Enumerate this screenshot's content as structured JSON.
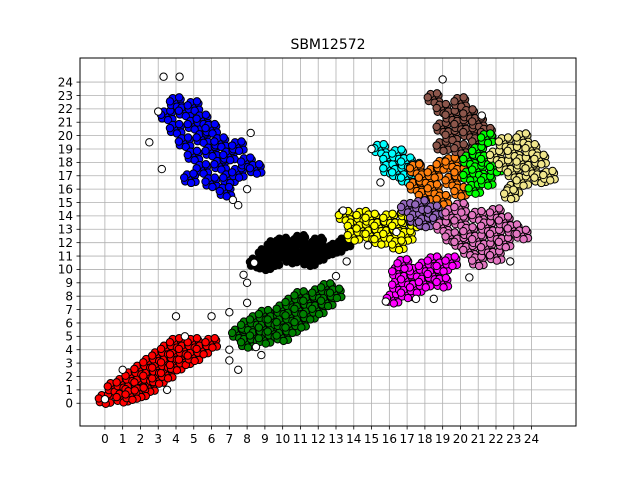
{
  "chart_data": {
    "type": "scatter",
    "title": "SBM12572",
    "xlabel": "",
    "ylabel": "",
    "xlim": [
      -1.4,
      26.5
    ],
    "ylim": [
      -1.7,
      25.8
    ],
    "x_ticks": [
      "0",
      "1",
      "2",
      "3",
      "4",
      "5",
      "6",
      "7",
      "8",
      "9",
      "10",
      "11",
      "12",
      "13",
      "14",
      "15",
      "16",
      "17",
      "18",
      "19",
      "20",
      "21",
      "22",
      "23",
      "24"
    ],
    "y_ticks": [
      "0",
      "1",
      "2",
      "3",
      "4",
      "5",
      "6",
      "7",
      "8",
      "9",
      "10",
      "11",
      "12",
      "13",
      "14",
      "15",
      "16",
      "17",
      "18",
      "19",
      "20",
      "21",
      "22",
      "23",
      "24"
    ],
    "grid": true,
    "legend": "none",
    "marker_edge_color": "#000000",
    "clusters": [
      {
        "color": "#ff0000",
        "points": [
          [
            0,
            0.3
          ],
          [
            0.5,
            1.2
          ],
          [
            1,
            1.5
          ],
          [
            1,
            0.4
          ],
          [
            1.5,
            1.0
          ],
          [
            1.5,
            2.0
          ],
          [
            2,
            1.5
          ],
          [
            2,
            2.5
          ],
          [
            2.5,
            1.2
          ],
          [
            2.5,
            2.0
          ],
          [
            2.5,
            3.0
          ],
          [
            3,
            1.8
          ],
          [
            3,
            2.6
          ],
          [
            3,
            3.5
          ],
          [
            3.5,
            2.2
          ],
          [
            3.5,
            3.0
          ],
          [
            3.5,
            4.0
          ],
          [
            4,
            2.8
          ],
          [
            4,
            3.6
          ],
          [
            4,
            4.5
          ],
          [
            4.5,
            3.2
          ],
          [
            4.5,
            4.0
          ],
          [
            5,
            3.5
          ],
          [
            5,
            4.5
          ],
          [
            5.5,
            4.0
          ],
          [
            6,
            4.5
          ],
          [
            2,
            0.8
          ],
          [
            1.5,
            0.6
          ]
        ]
      },
      {
        "color": "#008000",
        "points": [
          [
            7.5,
            5.2
          ],
          [
            8,
            4.5
          ],
          [
            8,
            5.8
          ],
          [
            8.5,
            5.0
          ],
          [
            8.5,
            6.2
          ],
          [
            9,
            4.8
          ],
          [
            9,
            5.6
          ],
          [
            9,
            6.6
          ],
          [
            9.5,
            5.3
          ],
          [
            9.5,
            6.2
          ],
          [
            10,
            5.0
          ],
          [
            10,
            6.0
          ],
          [
            10,
            7.0
          ],
          [
            10.5,
            5.6
          ],
          [
            10.5,
            6.5
          ],
          [
            10.5,
            7.5
          ],
          [
            11,
            6.0
          ],
          [
            11,
            7.0
          ],
          [
            11,
            8.0
          ],
          [
            11.5,
            6.6
          ],
          [
            11.5,
            7.6
          ],
          [
            12,
            7.0
          ],
          [
            12,
            8.2
          ],
          [
            12.5,
            7.6
          ],
          [
            12.5,
            8.6
          ],
          [
            13,
            8.2
          ]
        ]
      },
      {
        "color": "#000000",
        "points": [
          [
            8.5,
            10.5
          ],
          [
            9,
            11.2
          ],
          [
            9.5,
            11.8
          ],
          [
            9.5,
            10.6
          ],
          [
            10,
            11.2
          ],
          [
            10,
            12.0
          ],
          [
            10.5,
            10.8
          ],
          [
            10.5,
            11.6
          ],
          [
            11,
            11.0
          ],
          [
            11,
            12.2
          ],
          [
            11.5,
            11.4
          ],
          [
            11.5,
            10.6
          ],
          [
            12,
            11.0
          ],
          [
            12,
            12.0
          ],
          [
            12.5,
            11.4
          ],
          [
            13,
            11.6
          ],
          [
            13.5,
            12.0
          ],
          [
            9,
            10.3
          ]
        ]
      },
      {
        "color": "#0000ff",
        "points": [
          [
            3.5,
            21.5
          ],
          [
            4,
            22.5
          ],
          [
            4,
            20.5
          ],
          [
            4.5,
            21.8
          ],
          [
            4.5,
            19.5
          ],
          [
            5,
            22.2
          ],
          [
            5,
            20.8
          ],
          [
            5,
            18.5
          ],
          [
            5.5,
            21.2
          ],
          [
            5.5,
            19.8
          ],
          [
            5.5,
            17.5
          ],
          [
            6,
            20.5
          ],
          [
            6,
            18.8
          ],
          [
            6,
            16.5
          ],
          [
            6.5,
            19.5
          ],
          [
            6.5,
            17.8
          ],
          [
            7,
            18.5
          ],
          [
            7,
            16.8
          ],
          [
            7.5,
            19.2
          ],
          [
            7.5,
            17.2
          ],
          [
            8,
            18.0
          ],
          [
            8.5,
            17.5
          ],
          [
            4.8,
            16.8
          ],
          [
            6.8,
            15.8
          ]
        ]
      },
      {
        "color": "#ffff00",
        "points": [
          [
            13.5,
            14.0
          ],
          [
            14,
            13.2
          ],
          [
            14,
            12.5
          ],
          [
            14.5,
            14.0
          ],
          [
            14.5,
            13.0
          ],
          [
            15,
            12.6
          ],
          [
            15,
            13.8
          ],
          [
            15.5,
            13.2
          ],
          [
            15.5,
            12.2
          ],
          [
            16,
            13.8
          ],
          [
            16,
            12.6
          ],
          [
            16.5,
            13.2
          ],
          [
            17,
            12.5
          ],
          [
            17,
            14.2
          ],
          [
            17.5,
            13.5
          ],
          [
            16.5,
            11.8
          ]
        ]
      },
      {
        "color": "#00ffff",
        "points": [
          [
            15.5,
            19.0
          ],
          [
            16,
            18.2
          ],
          [
            16,
            17.5
          ],
          [
            16.5,
            18.6
          ],
          [
            16.5,
            17.2
          ],
          [
            17,
            18.0
          ],
          [
            17,
            16.8
          ],
          [
            17.5,
            17.6
          ]
        ]
      },
      {
        "color": "#ff7f0e",
        "points": [
          [
            17.5,
            17.5
          ],
          [
            17.5,
            16.2
          ],
          [
            18,
            16.8
          ],
          [
            18,
            15.5
          ],
          [
            18.5,
            17.2
          ],
          [
            18.5,
            16.0
          ],
          [
            19,
            17.8
          ],
          [
            19,
            15.2
          ],
          [
            19.5,
            16.6
          ],
          [
            19.5,
            18.0
          ],
          [
            20,
            17.2
          ],
          [
            20,
            15.8
          ]
        ]
      },
      {
        "color": "#8c564b",
        "points": [
          [
            18.5,
            22.8
          ],
          [
            19,
            22.0
          ],
          [
            19,
            20.6
          ],
          [
            19,
            19.2
          ],
          [
            19.5,
            21.5
          ],
          [
            19.5,
            20.0
          ],
          [
            20,
            22.5
          ],
          [
            20,
            19.0
          ],
          [
            20,
            20.8
          ],
          [
            20.5,
            21.6
          ],
          [
            20.5,
            20.2
          ],
          [
            21,
            19.5
          ],
          [
            21,
            21.0
          ],
          [
            21.5,
            20.2
          ]
        ]
      },
      {
        "color": "#00ff00",
        "points": [
          [
            20.5,
            18.2
          ],
          [
            20.5,
            17.0
          ],
          [
            20.8,
            16.0
          ],
          [
            21,
            18.8
          ],
          [
            21,
            17.4
          ],
          [
            21.5,
            19.8
          ],
          [
            21.5,
            18.2
          ],
          [
            21.5,
            16.6
          ],
          [
            22,
            17.6
          ]
        ]
      },
      {
        "color": "#f0e68c",
        "points": [
          [
            22,
            18.5
          ],
          [
            22.5,
            19.5
          ],
          [
            22.5,
            17.8
          ],
          [
            23,
            18.8
          ],
          [
            23,
            17.2
          ],
          [
            23,
            16.0
          ],
          [
            23.5,
            19.8
          ],
          [
            23.5,
            18.0
          ],
          [
            23.5,
            16.6
          ],
          [
            24,
            19.0
          ],
          [
            24,
            17.5
          ],
          [
            24.5,
            18.2
          ],
          [
            24.5,
            16.8
          ],
          [
            25,
            17.0
          ],
          [
            22.8,
            15.6
          ]
        ]
      },
      {
        "color": "#9467bd",
        "points": [
          [
            17,
            14.6
          ],
          [
            17.5,
            13.8
          ],
          [
            17.8,
            14.8
          ],
          [
            18,
            13.5
          ],
          [
            18.5,
            14.4
          ],
          [
            18.8,
            13.8
          ]
        ]
      },
      {
        "color": "#e377c2",
        "points": [
          [
            19,
            13.2
          ],
          [
            19.5,
            14.2
          ],
          [
            19.5,
            12.4
          ],
          [
            20,
            13.6
          ],
          [
            20,
            12.0
          ],
          [
            20,
            14.6
          ],
          [
            20.5,
            12.8
          ],
          [
            20.5,
            11.4
          ],
          [
            21,
            14.0
          ],
          [
            21,
            12.2
          ],
          [
            21,
            10.6
          ],
          [
            21.5,
            13.2
          ],
          [
            21.5,
            11.6
          ],
          [
            22,
            14.2
          ],
          [
            22,
            12.6
          ],
          [
            22,
            11.0
          ],
          [
            22.5,
            13.6
          ],
          [
            22.5,
            12.0
          ],
          [
            23,
            13.0
          ],
          [
            23.5,
            12.6
          ]
        ]
      },
      {
        "color": "#ff00ff",
        "points": [
          [
            16.2,
            7.8
          ],
          [
            16.5,
            8.8
          ],
          [
            16.5,
            9.8
          ],
          [
            17,
            8.2
          ],
          [
            17,
            9.2
          ],
          [
            17.5,
            9.8
          ],
          [
            17.5,
            8.6
          ],
          [
            18,
            10.2
          ],
          [
            18,
            9.0
          ],
          [
            18.5,
            9.6
          ],
          [
            18.5,
            10.6
          ],
          [
            19,
            10.2
          ],
          [
            19,
            9.0
          ],
          [
            19.5,
            10.6
          ],
          [
            16.8,
            10.4
          ]
        ]
      },
      {
        "color": "#ffffff",
        "points": [
          [
            0,
            0.3
          ],
          [
            1,
            2.5
          ],
          [
            3.5,
            1.0
          ],
          [
            4,
            6.5
          ],
          [
            4.5,
            5.0
          ],
          [
            6,
            6.5
          ],
          [
            7,
            4.0
          ],
          [
            7,
            3.2
          ],
          [
            7.5,
            2.5
          ],
          [
            7,
            6.8
          ],
          [
            8,
            7.5
          ],
          [
            8,
            9.0
          ],
          [
            7.8,
            9.6
          ],
          [
            8.5,
            4.2
          ],
          [
            8.8,
            3.6
          ],
          [
            13,
            9.5
          ],
          [
            13.6,
            10.6
          ],
          [
            8.4,
            10.5
          ],
          [
            3.3,
            24.4
          ],
          [
            4.2,
            24.4
          ],
          [
            2.5,
            19.5
          ],
          [
            3,
            21.8
          ],
          [
            3.2,
            17.5
          ],
          [
            8,
            16.0
          ],
          [
            7.5,
            14.8
          ],
          [
            8.2,
            20.2
          ],
          [
            7.2,
            15.2
          ],
          [
            15,
            19.0
          ],
          [
            15.5,
            16.5
          ],
          [
            19,
            24.2
          ],
          [
            15.8,
            7.6
          ],
          [
            14.8,
            11.8
          ],
          [
            18.5,
            7.8
          ],
          [
            20.5,
            9.4
          ],
          [
            22.8,
            10.6
          ],
          [
            21.2,
            21.5
          ],
          [
            13.4,
            14.4
          ],
          [
            16.4,
            12.8
          ],
          [
            17.5,
            7.8
          ]
        ]
      }
    ]
  }
}
